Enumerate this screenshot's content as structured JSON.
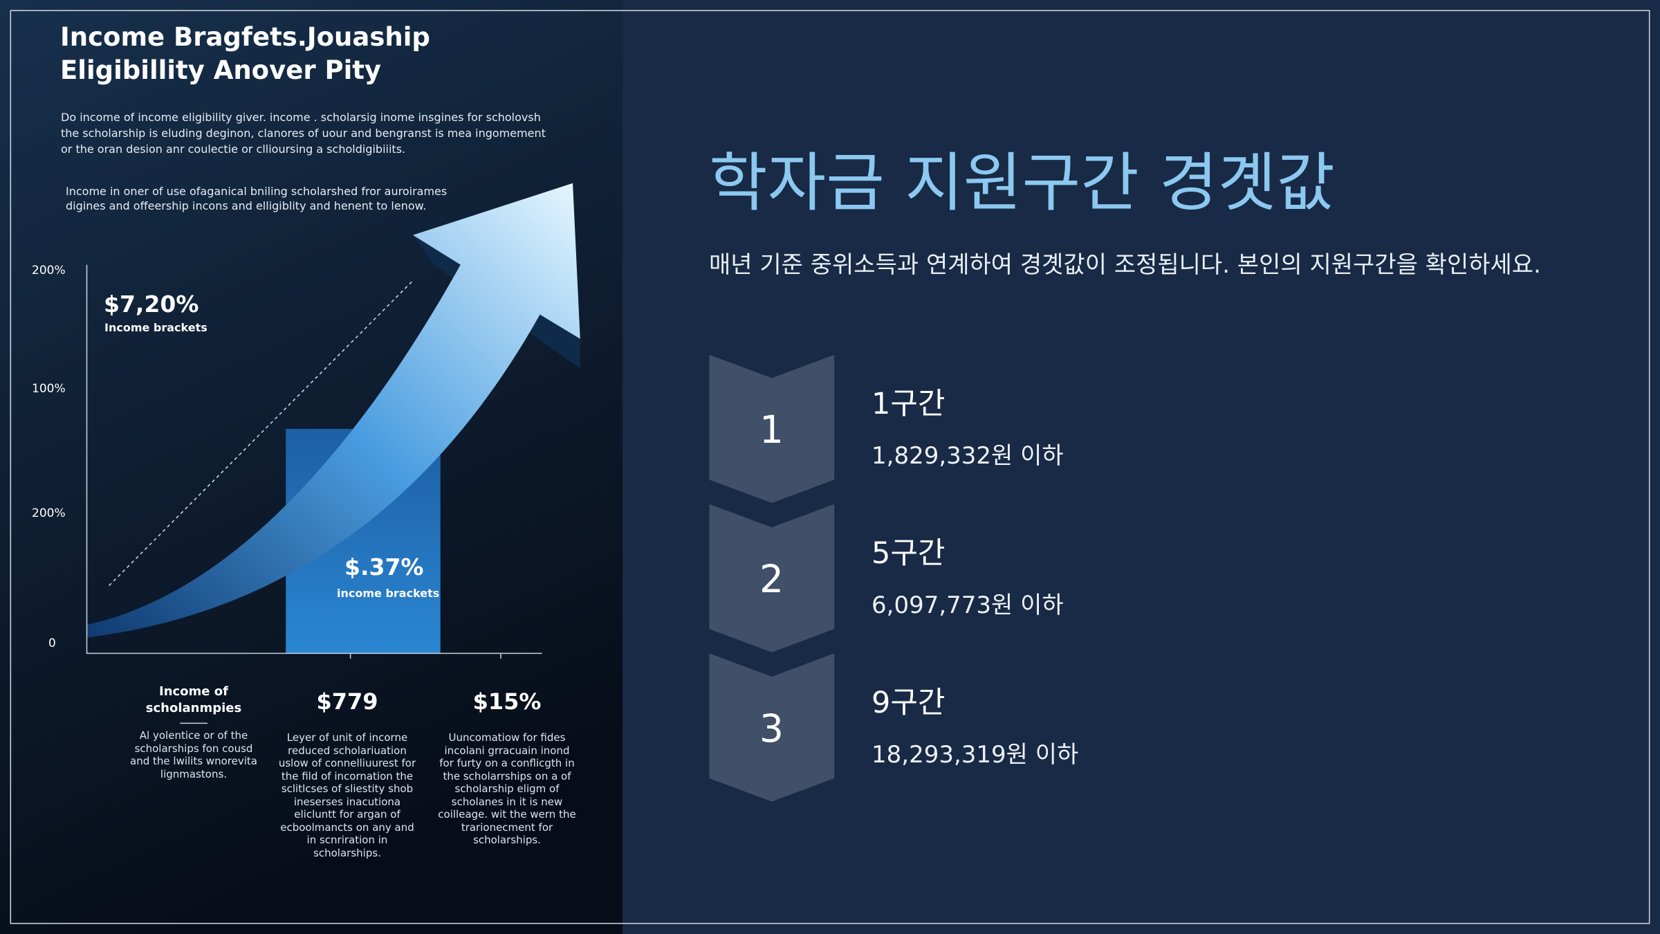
{
  "infographic": {
    "title": "Income Bragfets.Jouaship Eligibillity Anover Pity",
    "paragraphs": [
      "Do income of income eligibility giver. income . scholarsig inome insgines for scholovsh the scholarship is eluding deginon, clanores of uour and bengranst is mea ingomement or the oran desion anr coulectie or cllioursing a scholdigibiiits.",
      "Income in oner of use ofaganical bniling scholarshed fror auroirames digines and offeership incons and elligiblity and henent to lenow."
    ],
    "axis_labels": [
      "200%",
      "100%",
      "200%",
      "0"
    ],
    "callouts": [
      {
        "value": "$7,20%",
        "label": "Income brackets"
      },
      {
        "value": "$.37%",
        "label": "income brackets"
      }
    ],
    "columns": [
      {
        "heading": "Income of scholanmpies",
        "text": "Al yolentice or of the scholarships fon cousd and the lwilits wnorevita lignmastons."
      },
      {
        "heading": "$779",
        "text": "Leyer of unit of incorne reduced scholariuation uslow of connelliuurest for the fild of incornation the sclitlcses of sliestity shob ineserses inacutiona elicluntt for argan of ecboolmancts on any and in scnriration in scholarships."
      },
      {
        "heading": "$15%",
        "text": "Uuncomatiow for fides incolani grracuain inond for furty on a conflicgth in the scholarrships on a of scholarship eligm of scholanes in it is new coilleage. wit the wern the trarionecment for scholarships."
      }
    ]
  },
  "slide": {
    "title": "학자금 지원구간 경곗값",
    "subtitle": "매년 기준 중위소득과 연계하여 경곗값이 조정됩니다. 본인의 지원구간을 확인하세요.",
    "brackets": [
      {
        "number": "1",
        "name": "1구간",
        "threshold": "1,829,332원 이하"
      },
      {
        "number": "2",
        "name": "5구간",
        "threshold": "6,097,773원 이하"
      },
      {
        "number": "3",
        "name": "9구간",
        "threshold": "18,293,319원 이하"
      }
    ]
  }
}
